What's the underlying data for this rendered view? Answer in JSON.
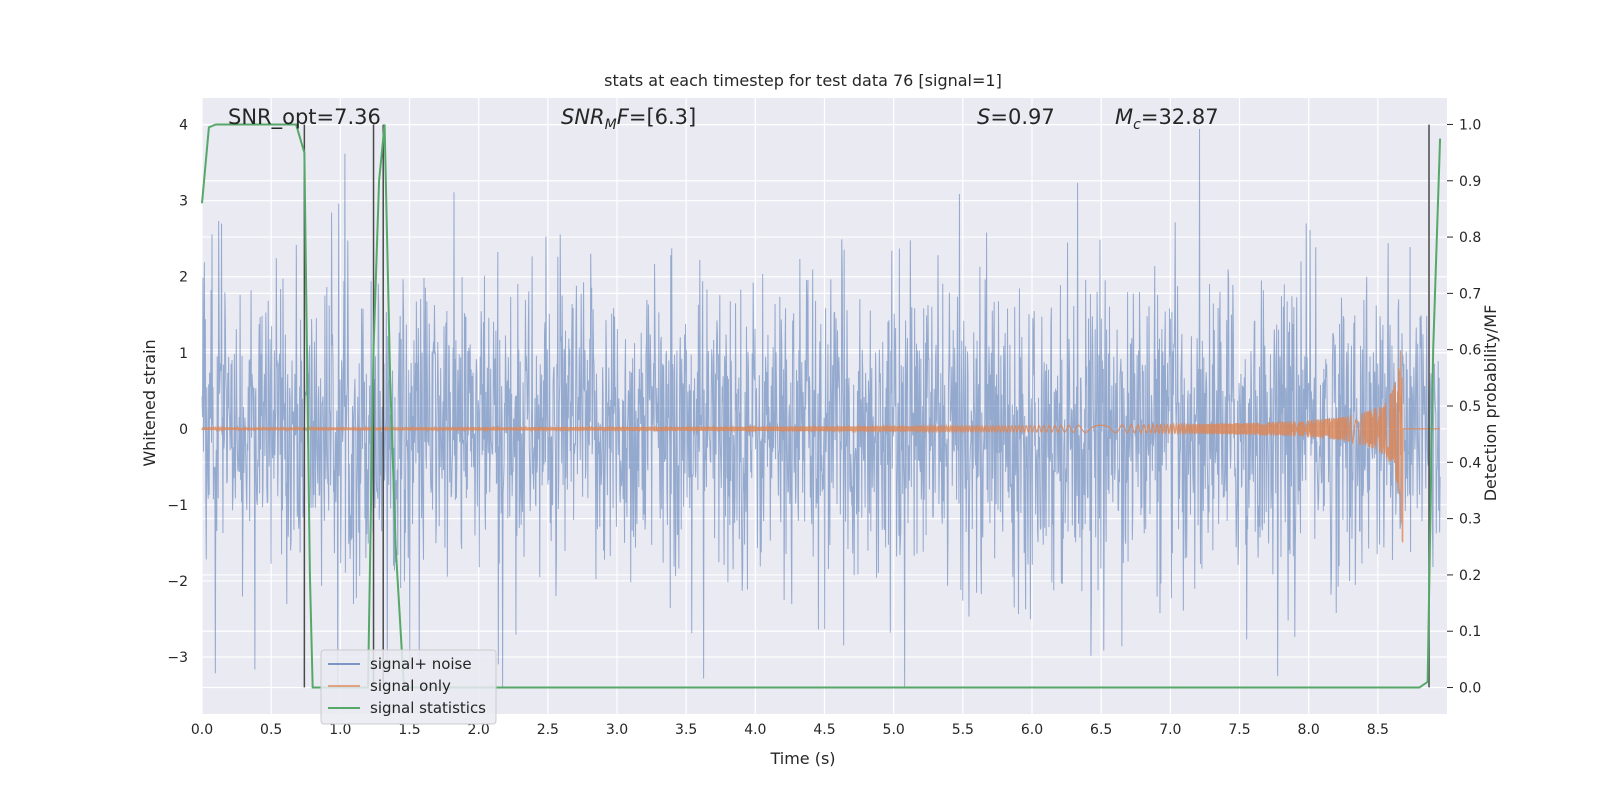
{
  "chart_data": {
    "type": "line",
    "title": "stats at each timestep for test data 76 [signal=1]",
    "xlabel": "Time (s)",
    "ylabel": "Whitened strain",
    "y2label": "Detection probability/MF",
    "xlim": [
      0.0,
      9.0
    ],
    "ylim": [
      -3.75,
      4.35
    ],
    "y2lim": [
      -0.047,
      1.047
    ],
    "x_ticks": [
      "0.0",
      "0.5",
      "1.0",
      "1.5",
      "2.0",
      "2.5",
      "3.0",
      "3.5",
      "4.0",
      "4.5",
      "5.0",
      "5.5",
      "6.0",
      "6.5",
      "7.0",
      "7.5",
      "8.0",
      "8.5"
    ],
    "y_ticks": [
      "4",
      "3",
      "2",
      "1",
      "0",
      "−1",
      "−2",
      "−3"
    ],
    "y2_ticks": [
      "1.0",
      "0.9",
      "0.8",
      "0.7",
      "0.6",
      "0.5",
      "0.4",
      "0.3",
      "0.2",
      "0.1",
      "0.0"
    ],
    "annotations": {
      "snr_opt": "SNR_opt=7.36",
      "snr_mf": "[6.3]",
      "s_val": "0.97",
      "mc_val": "32.87"
    },
    "series": [
      {
        "name": "signal+ noise",
        "color": "#4c72b0",
        "description_typical_amplitude": 1.2,
        "peak_max": 4.0,
        "peak_min": -3.4
      },
      {
        "name": "signal only",
        "color": "#dd8452",
        "chirp_end_time": 8.68,
        "chirp_peak_amplitude": 1.65
      },
      {
        "name": "signal statistics",
        "color": "#55a868",
        "x": [
          0.0,
          0.05,
          0.1,
          0.15,
          0.3,
          0.5,
          0.68,
          0.74,
          0.78,
          0.8,
          1.0,
          1.2,
          1.24,
          1.28,
          1.32,
          1.36,
          1.4,
          1.46,
          1.6,
          2.0,
          4.0,
          6.0,
          8.0,
          8.8,
          8.86,
          8.9,
          8.95
        ],
        "y": [
          0.86,
          0.995,
          1.0,
          1.0,
          1.0,
          1.0,
          1.0,
          0.95,
          0.2,
          0.0,
          0.0,
          0.0,
          0.6,
          0.9,
          1.0,
          0.55,
          0.25,
          0.0,
          0.0,
          0.0,
          0.0,
          0.0,
          0.0,
          0.0,
          0.01,
          0.6,
          0.975
        ]
      }
    ],
    "vlines": [
      0.74,
      1.24,
      1.31,
      8.87
    ],
    "legend_position": "lower-left",
    "grid": true
  }
}
